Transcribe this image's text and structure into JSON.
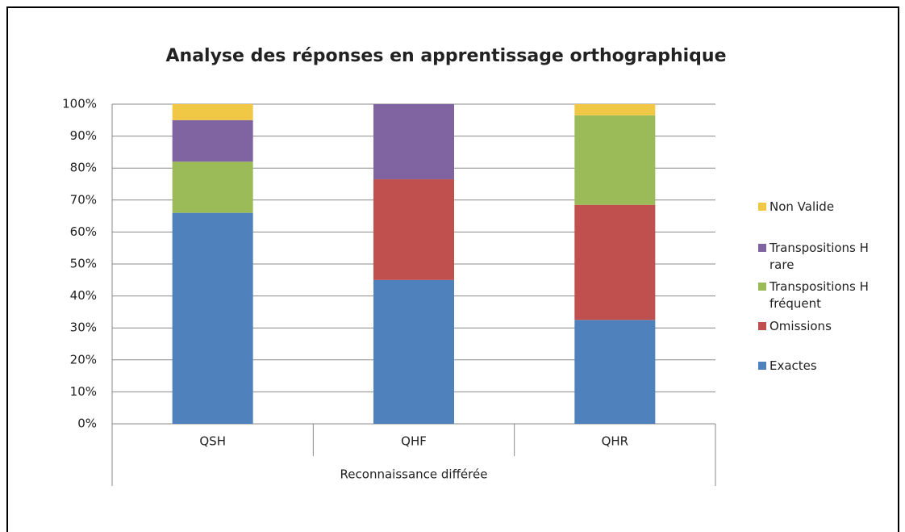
{
  "chart_data": {
    "type": "stacked_bar",
    "title": "Analyse des réponses en apprentissage orthographique",
    "categories": [
      "QSH",
      "QHF",
      "QHR"
    ],
    "category_group": "Reconnaissance différée",
    "series": [
      {
        "name": "Exactes",
        "color": "#4f81bd",
        "values": [
          66,
          45,
          32.5
        ]
      },
      {
        "name": "Omissions",
        "color": "#c0504d",
        "values": [
          0,
          31.5,
          36
        ]
      },
      {
        "name": "Transpositions H fréquent",
        "color": "#9bbb59",
        "values": [
          16,
          0,
          28
        ]
      },
      {
        "name": "Transpositions H rare",
        "color": "#8064a2",
        "values": [
          13,
          23.5,
          0
        ]
      },
      {
        "name": "Non Valide",
        "color": "#f0c846",
        "values": [
          5,
          0,
          3.5
        ]
      }
    ],
    "ylim": [
      0,
      100
    ],
    "yticks": [
      {
        "value": 0,
        "label": "0%"
      },
      {
        "value": 10,
        "label": "10%"
      },
      {
        "value": 20,
        "label": "20%"
      },
      {
        "value": 30,
        "label": "30%"
      },
      {
        "value": 40,
        "label": "40%"
      },
      {
        "value": 50,
        "label": "50%"
      },
      {
        "value": 60,
        "label": "60%"
      },
      {
        "value": 70,
        "label": "70%"
      },
      {
        "value": 80,
        "label": "80%"
      },
      {
        "value": 90,
        "label": "90%"
      },
      {
        "value": 100,
        "label": "100%"
      }
    ],
    "grid": true,
    "legend": "right"
  }
}
